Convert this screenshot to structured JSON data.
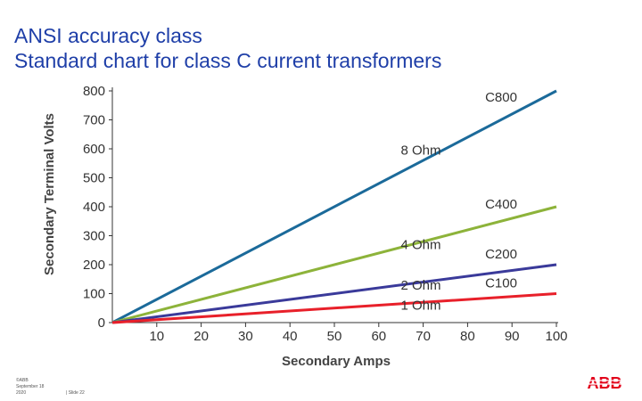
{
  "title": {
    "line1": "ANSI accuracy class",
    "line2": "Standard chart for class C current transformers"
  },
  "footer": {
    "copyright": "©ABB",
    "date_line1": "September 18",
    "date_line2": "2020",
    "slide": "| Slide 22"
  },
  "logo": {
    "text": "ABB",
    "color": "#e2001a"
  },
  "chart_data": {
    "type": "line",
    "xlabel": "Secondary Amps",
    "ylabel": "Secondary Terminal Volts",
    "xlim": [
      0,
      100
    ],
    "ylim": [
      0,
      800
    ],
    "x_ticks": [
      10,
      20,
      30,
      40,
      50,
      60,
      70,
      80,
      90,
      100
    ],
    "y_ticks": [
      0,
      100,
      200,
      300,
      400,
      500,
      600,
      700,
      800
    ],
    "grid": false,
    "series": [
      {
        "name": "C800",
        "resistance_label": "8 Ohm",
        "x": [
          0,
          100
        ],
        "y": [
          0,
          800
        ],
        "color": "#1b6a9a"
      },
      {
        "name": "C400",
        "resistance_label": "4 Ohm",
        "x": [
          0,
          100
        ],
        "y": [
          0,
          400
        ],
        "color": "#8db33a"
      },
      {
        "name": "C200",
        "resistance_label": "2 Ohm",
        "x": [
          0,
          100
        ],
        "y": [
          0,
          200
        ],
        "color": "#3a3a9a"
      },
      {
        "name": "C100",
        "resistance_label": "1 Ohm",
        "x": [
          0,
          100
        ],
        "y": [
          0,
          100
        ],
        "color": "#e8202a"
      }
    ]
  }
}
